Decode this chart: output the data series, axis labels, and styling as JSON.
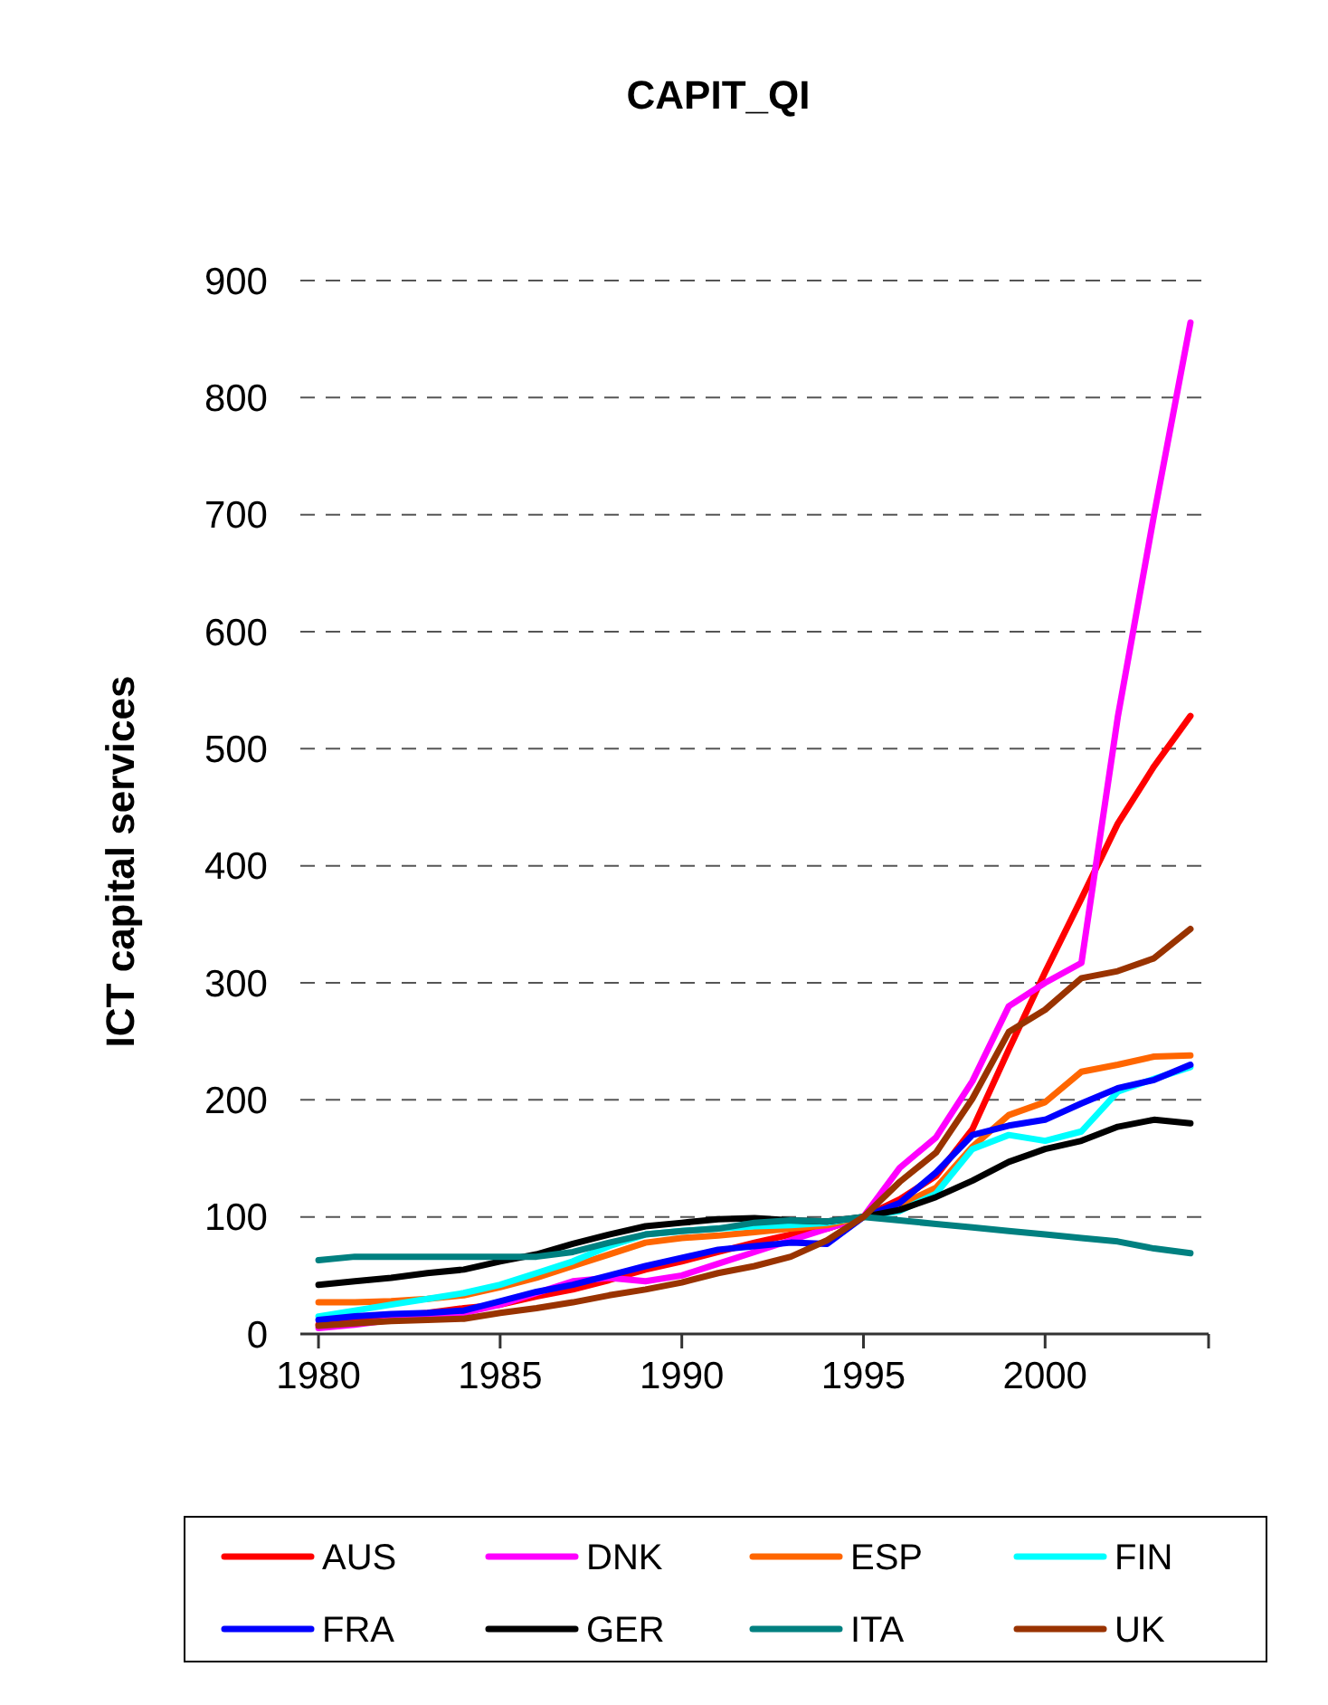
{
  "chart_data": {
    "type": "line",
    "title": "CAPIT_QI",
    "ylabel": "ICT capital services",
    "x": [
      1980,
      1981,
      1982,
      1983,
      1984,
      1985,
      1986,
      1987,
      1988,
      1989,
      1990,
      1991,
      1992,
      1993,
      1994,
      1995,
      1996,
      1997,
      1998,
      1999,
      2000,
      2001,
      2002,
      2003,
      2004
    ],
    "xlim": [
      1979.5,
      2004.5
    ],
    "xticks": [
      1980,
      1985,
      1990,
      1995,
      2000
    ],
    "ylim": [
      0,
      900
    ],
    "yticks": [
      0,
      100,
      200,
      300,
      400,
      500,
      600,
      700,
      800,
      900
    ],
    "grid": "y",
    "legend": "bottom",
    "marker": "none",
    "line_style": "solid",
    "series": [
      {
        "name": "AUS",
        "color": "#ff0000",
        "values": [
          8,
          12,
          15,
          18,
          22,
          25,
          32,
          38,
          46,
          55,
          62,
          70,
          78,
          85,
          90,
          100,
          115,
          135,
          175,
          243,
          309,
          372,
          436,
          485,
          528
        ]
      },
      {
        "name": "DNK",
        "color": "#ff00ff",
        "values": [
          5,
          8,
          12,
          15,
          18,
          25,
          35,
          45,
          48,
          45,
          50,
          60,
          70,
          80,
          90,
          100,
          142,
          168,
          216,
          280,
          300,
          317,
          527,
          700,
          864
        ]
      },
      {
        "name": "ESP",
        "color": "#ff6600",
        "values": [
          27,
          27,
          28,
          30,
          33,
          40,
          48,
          58,
          68,
          78,
          82,
          84,
          87,
          90,
          93,
          100,
          110,
          125,
          160,
          187,
          198,
          224,
          230,
          237,
          238
        ]
      },
      {
        "name": "FIN",
        "color": "#00ffff",
        "values": [
          15,
          20,
          25,
          30,
          35,
          42,
          52,
          62,
          75,
          85,
          88,
          90,
          92,
          93,
          95,
          100,
          105,
          120,
          158,
          170,
          165,
          173,
          207,
          218,
          228
        ]
      },
      {
        "name": "FRA",
        "color": "#0000ff",
        "values": [
          12,
          15,
          17,
          18,
          20,
          28,
          36,
          42,
          50,
          58,
          65,
          72,
          75,
          78,
          77,
          100,
          112,
          138,
          170,
          178,
          183,
          197,
          210,
          217,
          230
        ]
      },
      {
        "name": "GER",
        "color": "#000000",
        "values": [
          42,
          45,
          48,
          52,
          55,
          62,
          68,
          77,
          85,
          92,
          95,
          98,
          99,
          97,
          96,
          100,
          106,
          117,
          131,
          147,
          158,
          165,
          177,
          183,
          180
        ]
      },
      {
        "name": "ITA",
        "color": "#008080",
        "values": [
          63,
          66,
          66,
          66,
          66,
          66,
          66,
          70,
          78,
          85,
          88,
          90,
          95,
          97,
          96,
          100,
          97,
          94,
          91,
          88,
          85,
          82,
          79,
          73,
          69
        ]
      },
      {
        "name": "UK",
        "color": "#993300",
        "values": [
          7,
          9,
          11,
          12,
          13,
          18,
          22,
          27,
          33,
          38,
          44,
          52,
          58,
          66,
          80,
          100,
          130,
          155,
          201,
          258,
          277,
          304,
          310,
          321,
          346
        ]
      }
    ]
  }
}
